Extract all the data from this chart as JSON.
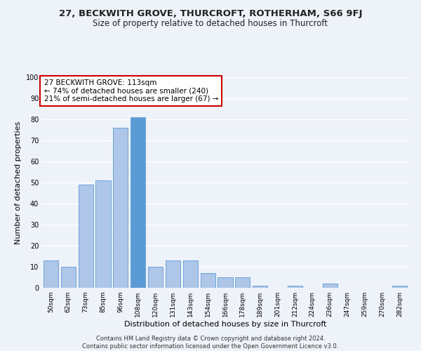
{
  "title": "27, BECKWITH GROVE, THURCROFT, ROTHERHAM, S66 9FJ",
  "subtitle": "Size of property relative to detached houses in Thurcroft",
  "xlabel": "Distribution of detached houses by size in Thurcroft",
  "ylabel": "Number of detached properties",
  "categories": [
    "50sqm",
    "62sqm",
    "73sqm",
    "85sqm",
    "96sqm",
    "108sqm",
    "120sqm",
    "131sqm",
    "143sqm",
    "154sqm",
    "166sqm",
    "178sqm",
    "189sqm",
    "201sqm",
    "212sqm",
    "224sqm",
    "236sqm",
    "247sqm",
    "259sqm",
    "270sqm",
    "282sqm"
  ],
  "values": [
    13,
    10,
    49,
    51,
    76,
    81,
    10,
    13,
    13,
    7,
    5,
    5,
    1,
    0,
    1,
    0,
    2,
    0,
    0,
    0,
    1
  ],
  "bar_color_normal": "#aec6e8",
  "bar_color_highlight": "#5b9bd5",
  "bar_edge_color": "#5b9bd5",
  "highlight_index": 5,
  "annotation_line1": "27 BECKWITH GROVE: 113sqm",
  "annotation_line2": "← 74% of detached houses are smaller (240)",
  "annotation_line3": "21% of semi-detached houses are larger (67) →",
  "annotation_box_color": "#ffffff",
  "annotation_box_edge": "#cc0000",
  "ylim": [
    0,
    100
  ],
  "yticks": [
    0,
    10,
    20,
    30,
    40,
    50,
    60,
    70,
    80,
    90,
    100
  ],
  "footer1": "Contains HM Land Registry data © Crown copyright and database right 2024.",
  "footer2": "Contains public sector information licensed under the Open Government Licence v3.0.",
  "background_color": "#eef2f9",
  "grid_color": "#ffffff",
  "title_fontsize": 9.5,
  "subtitle_fontsize": 8.5,
  "tick_fontsize": 6.5,
  "ylabel_fontsize": 8,
  "xlabel_fontsize": 8,
  "annotation_fontsize": 7.5,
  "footer_fontsize": 6.0
}
